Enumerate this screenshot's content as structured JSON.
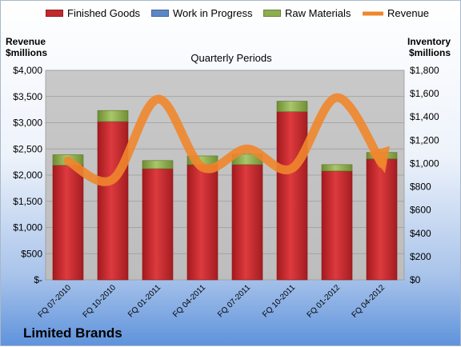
{
  "legend": [
    {
      "label": "Finished Goods",
      "color": "#c0292d"
    },
    {
      "label": "Work in Progress",
      "color": "#5b87c5"
    },
    {
      "label": "Raw Materials",
      "color": "#8eae4e"
    },
    {
      "label": "Revenue",
      "color": "#f0862c"
    }
  ],
  "chart_data": {
    "type": "bar",
    "title": "Quarterly Periods",
    "company": "Limited Brands",
    "left_axis": {
      "title_line1": "Revenue",
      "title_line2": "$millions",
      "range": [
        0,
        4000
      ],
      "ticks": [
        "$-",
        "$500",
        "$1,000",
        "$1,500",
        "$2,000",
        "$2,500",
        "$3,000",
        "$3,500",
        "$4,000"
      ]
    },
    "right_axis": {
      "title_line1": "Inventory",
      "title_line2": "$millions",
      "range": [
        0,
        1800
      ],
      "ticks": [
        "$0",
        "$200",
        "$400",
        "$600",
        "$800",
        "$1,000",
        "$1,200",
        "$1,400",
        "$1,600",
        "$1,800"
      ]
    },
    "categories": [
      "FQ 07-2010",
      "FQ 10-2010",
      "FQ 01-2011",
      "FQ 04-2011",
      "FQ 07-2011",
      "FQ 10-2011",
      "FQ 01-2012",
      "FQ 04-2012"
    ],
    "series": [
      {
        "name": "Finished Goods",
        "axis": "right",
        "color": "#c0292d",
        "values": [
          985,
          1360,
          955,
          990,
          990,
          1445,
          935,
          1040
        ]
      },
      {
        "name": "Work in Progress",
        "axis": "right",
        "color": "#5b87c5",
        "values": [
          0,
          0,
          0,
          0,
          0,
          0,
          0,
          0
        ]
      },
      {
        "name": "Raw Materials",
        "axis": "right",
        "color": "#8eae4e",
        "values": [
          90,
          95,
          70,
          75,
          90,
          90,
          55,
          55
        ]
      },
      {
        "name": "Revenue",
        "axis": "left",
        "type": "line",
        "color": "#f0862c",
        "values": [
          2270,
          1920,
          3450,
          2150,
          2500,
          2130,
          3480,
          2220
        ]
      }
    ],
    "grid": true
  }
}
